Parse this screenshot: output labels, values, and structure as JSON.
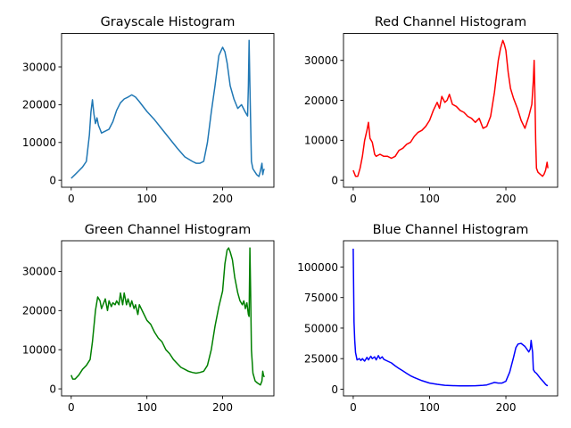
{
  "chart_data": [
    {
      "type": "line",
      "title": "Grayscale Histogram",
      "color": "#1f77b4",
      "xlim": [
        -12.75,
        267.75
      ],
      "ylim": [
        -1850,
        38850
      ],
      "xticks": [
        0,
        100,
        200
      ],
      "yticks": [
        0,
        10000,
        20000,
        30000
      ],
      "ytick_labels": [
        "0",
        "10000",
        "20000",
        "30000"
      ],
      "x": [
        0,
        5,
        10,
        15,
        20,
        24,
        26,
        28,
        30,
        32,
        34,
        36,
        38,
        40,
        45,
        50,
        55,
        60,
        65,
        70,
        75,
        80,
        85,
        90,
        95,
        100,
        110,
        120,
        130,
        140,
        150,
        160,
        165,
        170,
        175,
        180,
        185,
        190,
        195,
        200,
        203,
        206,
        210,
        215,
        220,
        225,
        230,
        233,
        234,
        235,
        236,
        238,
        240,
        245,
        248,
        250,
        252,
        253,
        254,
        255
      ],
      "y": [
        500,
        1500,
        2500,
        3500,
        5000,
        12000,
        18000,
        21300,
        17500,
        15000,
        16500,
        14500,
        13500,
        12500,
        13000,
        13500,
        15500,
        18500,
        20500,
        21500,
        22000,
        22600,
        22000,
        20800,
        19500,
        18200,
        16000,
        13500,
        11000,
        8500,
        6200,
        5000,
        4500,
        4500,
        5000,
        10000,
        18000,
        25000,
        33000,
        35200,
        34000,
        31000,
        25000,
        21500,
        19000,
        20000,
        18000,
        17000,
        25000,
        37000,
        25000,
        5000,
        3000,
        1500,
        1000,
        2500,
        4500,
        1500,
        2500,
        3000
      ]
    },
    {
      "type": "line",
      "title": "Red Channel Histogram",
      "color": "#ff0000",
      "xlim": [
        -12.75,
        267.75
      ],
      "ylim": [
        -1750,
        36750
      ],
      "xticks": [
        0,
        100,
        200
      ],
      "yticks": [
        0,
        10000,
        20000,
        30000
      ],
      "ytick_labels": [
        "0",
        "10000",
        "20000",
        "30000"
      ],
      "x": [
        0,
        3,
        6,
        9,
        12,
        15,
        18,
        20,
        22,
        25,
        28,
        30,
        35,
        40,
        45,
        50,
        55,
        60,
        65,
        70,
        75,
        80,
        85,
        90,
        95,
        100,
        105,
        110,
        113,
        116,
        120,
        123,
        126,
        130,
        135,
        140,
        145,
        150,
        155,
        160,
        165,
        170,
        175,
        180,
        185,
        190,
        193,
        196,
        198,
        200,
        203,
        206,
        210,
        215,
        220,
        225,
        230,
        234,
        236,
        237,
        238,
        239,
        240,
        242,
        245,
        248,
        250,
        252,
        254,
        255
      ],
      "y": [
        2500,
        1000,
        1000,
        3000,
        6000,
        10000,
        12500,
        14500,
        10500,
        9500,
        6500,
        6000,
        6500,
        6000,
        6000,
        5500,
        6000,
        7500,
        8000,
        9000,
        9500,
        11000,
        12000,
        12500,
        13500,
        15000,
        17500,
        19500,
        18000,
        21000,
        19500,
        20000,
        21500,
        19000,
        18500,
        17500,
        17000,
        16000,
        15500,
        14500,
        15500,
        13000,
        13500,
        16000,
        22000,
        30000,
        33000,
        35000,
        34000,
        32500,
        27000,
        23000,
        20500,
        18000,
        15000,
        13000,
        16000,
        19000,
        25000,
        30000,
        22000,
        10000,
        3000,
        2000,
        1500,
        1000,
        1500,
        2500,
        4500,
        3000
      ]
    },
    {
      "type": "line",
      "title": "Green Channel Histogram",
      "color": "#008000",
      "xlim": [
        -12.75,
        267.75
      ],
      "ylim": [
        -1800,
        37850
      ],
      "xticks": [
        0,
        100,
        200
      ],
      "yticks": [
        0,
        10000,
        20000,
        30000
      ],
      "ytick_labels": [
        "0",
        "10000",
        "20000",
        "30000"
      ],
      "x": [
        0,
        2,
        5,
        10,
        15,
        20,
        25,
        28,
        30,
        32,
        35,
        38,
        40,
        43,
        45,
        48,
        50,
        53,
        55,
        58,
        60,
        63,
        65,
        68,
        70,
        73,
        75,
        78,
        80,
        83,
        85,
        88,
        90,
        95,
        100,
        105,
        110,
        115,
        120,
        125,
        130,
        135,
        140,
        145,
        150,
        155,
        160,
        165,
        170,
        175,
        180,
        185,
        190,
        195,
        200,
        203,
        206,
        208,
        210,
        213,
        216,
        220,
        223,
        226,
        228,
        230,
        232,
        234,
        235,
        236,
        237,
        238,
        240,
        243,
        246,
        250,
        252,
        253,
        254,
        255
      ],
      "y": [
        3500,
        2500,
        2500,
        3500,
        5000,
        6000,
        7500,
        12000,
        16000,
        20000,
        23500,
        22500,
        20500,
        22000,
        23000,
        20000,
        22500,
        21000,
        22000,
        21500,
        22500,
        21500,
        24500,
        21500,
        24500,
        21500,
        23000,
        21000,
        22500,
        20500,
        21500,
        19000,
        21500,
        19500,
        17500,
        16500,
        14500,
        13000,
        12000,
        10000,
        9000,
        7500,
        6500,
        5500,
        5000,
        4500,
        4200,
        4000,
        4200,
        4500,
        6000,
        10000,
        16000,
        21000,
        25000,
        32000,
        35500,
        36000,
        35000,
        33000,
        28500,
        24500,
        22500,
        21500,
        22500,
        20500,
        22000,
        19000,
        18500,
        36000,
        25000,
        10000,
        4000,
        2000,
        1500,
        1000,
        2000,
        4500,
        3500,
        3000
      ]
    },
    {
      "type": "line",
      "title": "Blue Channel Histogram",
      "color": "#0000ff",
      "xlim": [
        -12.75,
        267.75
      ],
      "ylim": [
        -5500,
        121500
      ],
      "xticks": [
        0,
        100,
        200
      ],
      "yticks": [
        0,
        25000,
        50000,
        75000,
        100000
      ],
      "ytick_labels": [
        "0",
        "25000",
        "50000",
        "75000",
        "100000"
      ],
      "x": [
        0,
        1,
        2,
        3,
        5,
        8,
        10,
        12,
        15,
        18,
        20,
        23,
        25,
        28,
        30,
        33,
        35,
        38,
        40,
        45,
        50,
        55,
        60,
        65,
        70,
        75,
        80,
        90,
        100,
        110,
        120,
        130,
        140,
        150,
        160,
        170,
        175,
        180,
        185,
        190,
        195,
        200,
        205,
        210,
        213,
        216,
        220,
        225,
        230,
        232,
        233,
        235,
        236,
        238,
        240,
        245,
        250,
        252,
        254,
        255
      ],
      "y": [
        115000,
        55000,
        40000,
        30000,
        24000,
        25000,
        23500,
        25000,
        23000,
        26000,
        24000,
        27000,
        25000,
        26500,
        24000,
        27500,
        25000,
        26500,
        24500,
        23000,
        21500,
        19000,
        17000,
        15000,
        13000,
        11000,
        9500,
        7000,
        5000,
        4000,
        3200,
        2900,
        2700,
        2700,
        2800,
        3200,
        3500,
        4500,
        5500,
        5000,
        5000,
        6500,
        14000,
        26000,
        34000,
        37000,
        37500,
        35000,
        30500,
        33000,
        40000,
        30000,
        16000,
        14000,
        13000,
        9000,
        5500,
        4000,
        3000,
        3000
      ]
    }
  ]
}
